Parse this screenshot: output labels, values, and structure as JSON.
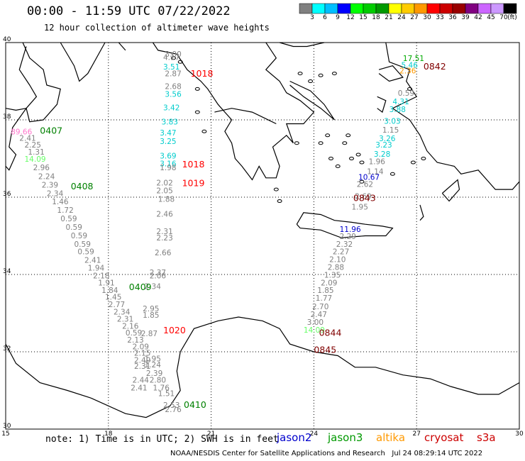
{
  "header": {
    "title": "00:00 - 11:59 UTC 07/22/2022",
    "subtitle": "12 hour collection of altimeter wave heights"
  },
  "colorbar": {
    "unit": "(ft)",
    "colors": [
      "#808080",
      "#00ffff",
      "#00bfff",
      "#0000ff",
      "#00ff00",
      "#00cc00",
      "#009900",
      "#ffff00",
      "#ffcc00",
      "#ff9900",
      "#ff0000",
      "#cc0000",
      "#990000",
      "#800080",
      "#cc66ff",
      "#cc99ff",
      "#000000"
    ],
    "labels": [
      "3",
      "6",
      "9",
      "12",
      "15",
      "18",
      "21",
      "24",
      "27",
      "30",
      "33",
      "36",
      "39",
      "42",
      "45",
      "70"
    ]
  },
  "axes": {
    "x_ticks": [
      "15",
      "18",
      "21",
      "24",
      "27",
      "30"
    ],
    "y_ticks": [
      "40",
      "38",
      "36",
      "34",
      "32",
      "30"
    ],
    "lon_range": [
      15,
      30
    ],
    "lat_range": [
      30,
      40
    ]
  },
  "passes": [
    {
      "label": "0407",
      "color": "#008000",
      "lon": 16.0,
      "lat": 37.64
    },
    {
      "label": "0408",
      "color": "#008000",
      "lon": 16.9,
      "lat": 36.2
    },
    {
      "label": "0409",
      "color": "#008000",
      "lon": 18.6,
      "lat": 33.6
    },
    {
      "label": "0410",
      "color": "#008000",
      "lon": 20.2,
      "lat": 30.55
    },
    {
      "label": "1018",
      "color": "#ff0000",
      "lon": 20.4,
      "lat": 39.12
    },
    {
      "label": "1018",
      "color": "#ff0000",
      "lon": 20.15,
      "lat": 36.77
    },
    {
      "label": "1019",
      "color": "#ff0000",
      "lon": 20.15,
      "lat": 36.28
    },
    {
      "label": "1020",
      "color": "#ff0000",
      "lon": 19.6,
      "lat": 32.48
    },
    {
      "label": "0842",
      "color": "#800000",
      "lon": 27.2,
      "lat": 39.3
    },
    {
      "label": "0843",
      "color": "#800000",
      "lon": 25.15,
      "lat": 35.9
    },
    {
      "label": "0844",
      "color": "#800000",
      "lon": 24.15,
      "lat": 32.41
    },
    {
      "label": "0845",
      "color": "#800000",
      "lon": 24.0,
      "lat": 31.97
    }
  ],
  "tracks": [
    {
      "name": "west",
      "points": [
        {
          "v": "89.66",
          "color": "#ff77cc",
          "lon": 15.15,
          "lat": 37.62
        },
        {
          "v": "2.41",
          "color": "#808080",
          "lon": 15.4,
          "lat": 37.46
        },
        {
          "v": "2.25",
          "color": "#808080",
          "lon": 15.55,
          "lat": 37.28
        },
        {
          "v": "1.31",
          "color": "#808080",
          "lon": 15.65,
          "lat": 37.1
        },
        {
          "v": "14.09",
          "color": "#66ff66",
          "lon": 15.55,
          "lat": 36.92
        },
        {
          "v": "2.96",
          "color": "#808080",
          "lon": 15.8,
          "lat": 36.7
        },
        {
          "v": "2.24",
          "color": "#808080",
          "lon": 15.95,
          "lat": 36.47
        },
        {
          "v": "2.39",
          "color": "#808080",
          "lon": 16.05,
          "lat": 36.25
        },
        {
          "v": "2.34",
          "color": "#808080",
          "lon": 16.2,
          "lat": 36.03
        },
        {
          "v": "1.46",
          "color": "#808080",
          "lon": 16.35,
          "lat": 35.82
        },
        {
          "v": "1.72",
          "color": "#808080",
          "lon": 16.5,
          "lat": 35.6
        },
        {
          "v": "0.59",
          "color": "#808080",
          "lon": 16.6,
          "lat": 35.38
        },
        {
          "v": "0.59",
          "color": "#808080",
          "lon": 16.75,
          "lat": 35.16
        },
        {
          "v": "0.59",
          "color": "#808080",
          "lon": 16.9,
          "lat": 34.94
        },
        {
          "v": "0.59",
          "color": "#808080",
          "lon": 17.0,
          "lat": 34.72
        },
        {
          "v": "0.59",
          "color": "#808080",
          "lon": 17.1,
          "lat": 34.52
        },
        {
          "v": "2.41",
          "color": "#808080",
          "lon": 17.3,
          "lat": 34.3
        },
        {
          "v": "1.94",
          "color": "#808080",
          "lon": 17.4,
          "lat": 34.1
        },
        {
          "v": "2.18",
          "color": "#808080",
          "lon": 17.55,
          "lat": 33.9
        },
        {
          "v": "1.91",
          "color": "#808080",
          "lon": 17.7,
          "lat": 33.72
        },
        {
          "v": "1.84",
          "color": "#808080",
          "lon": 17.8,
          "lat": 33.52
        },
        {
          "v": "1.45",
          "color": "#808080",
          "lon": 17.9,
          "lat": 33.35
        },
        {
          "v": "2.77",
          "color": "#808080",
          "lon": 18.0,
          "lat": 33.16
        },
        {
          "v": "2.34",
          "color": "#808080",
          "lon": 18.15,
          "lat": 32.96
        },
        {
          "v": "2.31",
          "color": "#808080",
          "lon": 18.25,
          "lat": 32.78
        },
        {
          "v": "2.16",
          "color": "#808080",
          "lon": 18.4,
          "lat": 32.6
        },
        {
          "v": "0.59",
          "color": "#808080",
          "lon": 18.5,
          "lat": 32.42
        },
        {
          "v": "2.13",
          "color": "#808080",
          "lon": 18.55,
          "lat": 32.24
        },
        {
          "v": "2.09",
          "color": "#808080",
          "lon": 18.7,
          "lat": 32.06
        },
        {
          "v": "2.15",
          "color": "#808080",
          "lon": 18.75,
          "lat": 31.9
        },
        {
          "v": "2.49",
          "color": "#808080",
          "lon": 18.75,
          "lat": 31.72
        },
        {
          "v": "2.31",
          "color": "#808080",
          "lon": 18.75,
          "lat": 31.56
        },
        {
          "v": "2.44",
          "color": "#808080",
          "lon": 18.7,
          "lat": 31.2
        },
        {
          "v": "2.41",
          "color": "#808080",
          "lon": 18.65,
          "lat": 31.0
        }
      ]
    },
    {
      "name": "central",
      "points": [
        {
          "v": "3.00",
          "color": "#808080",
          "lon": 19.65,
          "lat": 39.63
        },
        {
          "v": "4.17",
          "color": "#808080",
          "lon": 19.6,
          "lat": 39.55
        },
        {
          "v": "3.51",
          "color": "#00cccc",
          "lon": 19.6,
          "lat": 39.3
        },
        {
          "v": "2.87",
          "color": "#808080",
          "lon": 19.65,
          "lat": 39.13
        },
        {
          "v": "2.68",
          "color": "#808080",
          "lon": 19.65,
          "lat": 38.8
        },
        {
          "v": "3.56",
          "color": "#00cccc",
          "lon": 19.65,
          "lat": 38.6
        },
        {
          "v": "3.42",
          "color": "#00cccc",
          "lon": 19.6,
          "lat": 38.25
        },
        {
          "v": "3.83",
          "color": "#00cccc",
          "lon": 19.55,
          "lat": 37.88
        },
        {
          "v": "3.47",
          "color": "#00cccc",
          "lon": 19.5,
          "lat": 37.6
        },
        {
          "v": "3.25",
          "color": "#00cccc",
          "lon": 19.5,
          "lat": 37.38
        },
        {
          "v": "3.69",
          "color": "#00cccc",
          "lon": 19.5,
          "lat": 37.0
        },
        {
          "v": "3.16",
          "color": "#00cccc",
          "lon": 19.5,
          "lat": 36.8
        },
        {
          "v": "1.98",
          "color": "#808080",
          "lon": 19.5,
          "lat": 36.7
        },
        {
          "v": "2.02",
          "color": "#808080",
          "lon": 19.4,
          "lat": 36.3
        },
        {
          "v": "2.05",
          "color": "#808080",
          "lon": 19.4,
          "lat": 36.1
        },
        {
          "v": "1.88",
          "color": "#808080",
          "lon": 19.45,
          "lat": 35.88
        },
        {
          "v": "2.46",
          "color": "#808080",
          "lon": 19.4,
          "lat": 35.5
        },
        {
          "v": "2.31",
          "color": "#808080",
          "lon": 19.4,
          "lat": 35.05
        },
        {
          "v": "2.23",
          "color": "#808080",
          "lon": 19.4,
          "lat": 34.88
        },
        {
          "v": "2.66",
          "color": "#808080",
          "lon": 19.35,
          "lat": 34.5
        },
        {
          "v": "2.37",
          "color": "#808080",
          "lon": 19.2,
          "lat": 33.98
        },
        {
          "v": "2.06",
          "color": "#808080",
          "lon": 19.2,
          "lat": 33.9
        },
        {
          "v": "2.34",
          "color": "#808080",
          "lon": 19.05,
          "lat": 33.62
        },
        {
          "v": "2.95",
          "color": "#808080",
          "lon": 19.0,
          "lat": 33.05
        },
        {
          "v": "1.85",
          "color": "#808080",
          "lon": 19.0,
          "lat": 32.88
        },
        {
          "v": "2.87",
          "color": "#808080",
          "lon": 18.95,
          "lat": 32.4
        },
        {
          "v": "1.95",
          "color": "#808080",
          "lon": 19.05,
          "lat": 31.75
        },
        {
          "v": "1.24",
          "color": "#808080",
          "lon": 19.05,
          "lat": 31.6
        },
        {
          "v": "2.39",
          "color": "#808080",
          "lon": 19.1,
          "lat": 31.38
        },
        {
          "v": "2.80",
          "color": "#808080",
          "lon": 19.2,
          "lat": 31.2
        },
        {
          "v": "1.76",
          "color": "#808080",
          "lon": 19.3,
          "lat": 31.0
        },
        {
          "v": "1.51",
          "color": "#808080",
          "lon": 19.45,
          "lat": 30.85
        },
        {
          "v": "2.53",
          "color": "#808080",
          "lon": 19.6,
          "lat": 30.55
        },
        {
          "v": "2.76",
          "color": "#808080",
          "lon": 19.65,
          "lat": 30.44
        }
      ]
    },
    {
      "name": "east",
      "points": [
        {
          "v": "17.51",
          "color": "#00aa00",
          "lon": 26.6,
          "lat": 39.52
        },
        {
          "v": "5.46",
          "color": "#00cccc",
          "lon": 26.55,
          "lat": 39.35
        },
        {
          "v": "2.36",
          "color": "#ff9900",
          "lon": 26.5,
          "lat": 39.2
        },
        {
          "v": "0.59",
          "color": "#808080",
          "lon": 26.45,
          "lat": 38.62
        },
        {
          "v": "4.31",
          "color": "#00cccc",
          "lon": 26.3,
          "lat": 38.4
        },
        {
          "v": "3.88",
          "color": "#00cccc",
          "lon": 26.2,
          "lat": 38.2
        },
        {
          "v": "3.03",
          "color": "#00cccc",
          "lon": 26.05,
          "lat": 37.9
        },
        {
          "v": "1.15",
          "color": "#808080",
          "lon": 26.0,
          "lat": 37.67
        },
        {
          "v": "3.26",
          "color": "#00cccc",
          "lon": 25.9,
          "lat": 37.45
        },
        {
          "v": "3.23",
          "color": "#00cccc",
          "lon": 25.8,
          "lat": 37.28
        },
        {
          "v": "3.28",
          "color": "#00cccc",
          "lon": 25.75,
          "lat": 37.05
        },
        {
          "v": "1.96",
          "color": "#808080",
          "lon": 25.6,
          "lat": 36.85
        },
        {
          "v": "1.14",
          "color": "#808080",
          "lon": 25.55,
          "lat": 36.6
        },
        {
          "v": "10.67",
          "color": "#0000cc",
          "lon": 25.3,
          "lat": 36.45
        },
        {
          "v": "2.62",
          "color": "#808080",
          "lon": 25.25,
          "lat": 36.27
        },
        {
          "v": "2.69",
          "color": "#808080",
          "lon": 25.2,
          "lat": 35.95
        },
        {
          "v": "1.95",
          "color": "#808080",
          "lon": 25.1,
          "lat": 35.68
        },
        {
          "v": "11.96",
          "color": "#0000cc",
          "lon": 24.75,
          "lat": 35.1
        },
        {
          "v": "2.29",
          "color": "#808080",
          "lon": 24.75,
          "lat": 34.92
        },
        {
          "v": "2.32",
          "color": "#808080",
          "lon": 24.65,
          "lat": 34.72
        },
        {
          "v": "2.27",
          "color": "#808080",
          "lon": 24.55,
          "lat": 34.52
        },
        {
          "v": "2.10",
          "color": "#808080",
          "lon": 24.45,
          "lat": 34.32
        },
        {
          "v": "2.88",
          "color": "#808080",
          "lon": 24.4,
          "lat": 34.12
        },
        {
          "v": "1.35",
          "color": "#808080",
          "lon": 24.3,
          "lat": 33.92
        },
        {
          "v": "2.09",
          "color": "#808080",
          "lon": 24.2,
          "lat": 33.72
        },
        {
          "v": "1.85",
          "color": "#808080",
          "lon": 24.1,
          "lat": 33.52
        },
        {
          "v": "1.77",
          "color": "#808080",
          "lon": 24.05,
          "lat": 33.32
        },
        {
          "v": "2.70",
          "color": "#808080",
          "lon": 23.95,
          "lat": 33.1
        },
        {
          "v": "2.47",
          "color": "#808080",
          "lon": 23.9,
          "lat": 32.9
        },
        {
          "v": "3.00",
          "color": "#808080",
          "lon": 23.8,
          "lat": 32.7
        },
        {
          "v": "14.09",
          "color": "#66ff66",
          "lon": 23.7,
          "lat": 32.5
        }
      ]
    }
  ],
  "note": "note: 1) Time is in UTC; 2) SWH is in feet",
  "satellites": [
    {
      "name": "jason2",
      "color": "#0000cc"
    },
    {
      "name": "jason3",
      "color": "#009900"
    },
    {
      "name": "altika",
      "color": "#ff9900"
    },
    {
      "name": "cryosat",
      "color": "#cc0000"
    },
    {
      "name": "s3a",
      "color": "#cc0000"
    }
  ],
  "credit": "NOAA/NESDIS Center for Satellite Applications and Research",
  "timestamp": "Jul 24 08:29:14 UTC 2022"
}
